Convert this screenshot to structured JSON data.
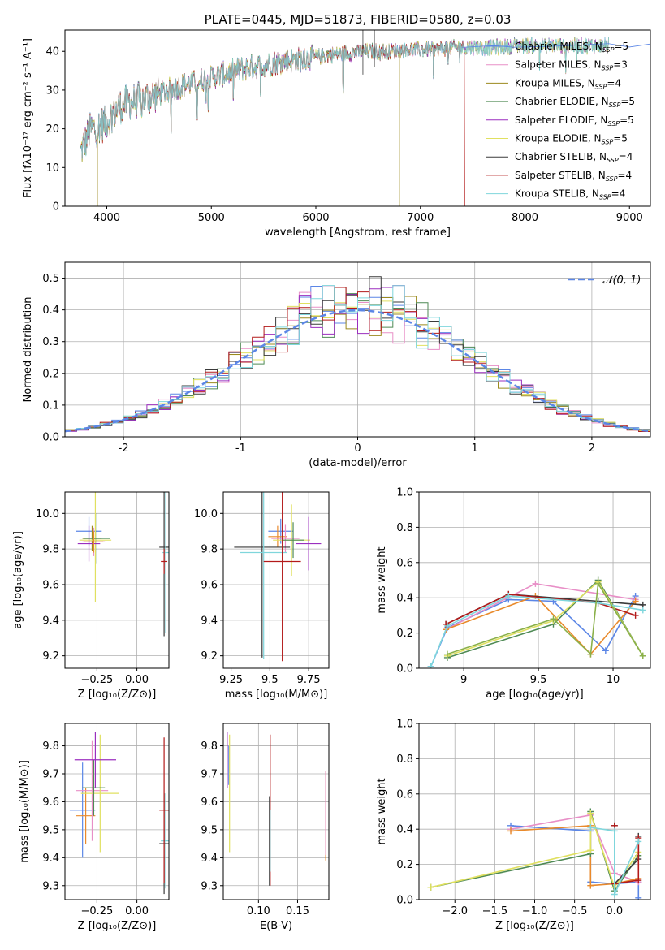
{
  "chart_data": [
    {
      "id": "spectrum",
      "type": "line",
      "title": "PLATE=0445, MJD=51873, FIBERID=0580, z=0.03",
      "xlabel": "wavelength [Angstrom, rest frame]",
      "ylabel": "Flux [fλ10⁻¹⁷ erg cm⁻² s⁻¹ A⁻¹]",
      "xlim": [
        3600,
        9200
      ],
      "ylim": [
        0,
        45.5
      ],
      "xticks": [
        4000,
        5000,
        6000,
        7000,
        8000,
        9000
      ],
      "yticks": [
        0,
        10,
        20,
        30,
        40
      ],
      "legend_loc": "upper right",
      "series": [
        {
          "name": "Chabrier MILES, N",
          "sub": "SSP",
          "tail": "=5",
          "color": "#5b86e6"
        },
        {
          "name": "Salpeter MILES, N",
          "sub": "SSP",
          "tail": "=3",
          "color": "#e88fc7"
        },
        {
          "name": "Kroupa MILES, N",
          "sub": "SSP",
          "tail": "=4",
          "color": "#9b8a1e"
        },
        {
          "name": "Chabrier ELODIE, N",
          "sub": "SSP",
          "tail": "=5",
          "color": "#4f8a55"
        },
        {
          "name": "Salpeter ELODIE, N",
          "sub": "SSP",
          "tail": "=5",
          "color": "#9b2fbf"
        },
        {
          "name": "Kroupa ELODIE, N",
          "sub": "SSP",
          "tail": "=5",
          "color": "#e0e060"
        },
        {
          "name": "Chabrier STELIB, N",
          "sub": "SSP",
          "tail": "=4",
          "color": "#3a3a3a"
        },
        {
          "name": "Salpeter STELIB, N",
          "sub": "SSP",
          "tail": "=4",
          "color": "#b31a1a"
        },
        {
          "name": "Kroupa STELIB, N",
          "sub": "SSP",
          "tail": "=4",
          "color": "#7fd6dc"
        }
      ],
      "continuum": [
        [
          3750,
          14
        ],
        [
          3800,
          17
        ],
        [
          3850,
          20
        ],
        [
          3900,
          20
        ],
        [
          4000,
          22
        ],
        [
          4100,
          25
        ],
        [
          4200,
          27
        ],
        [
          4300,
          27.5
        ],
        [
          4500,
          29
        ],
        [
          4700,
          31
        ],
        [
          4900,
          32.5
        ],
        [
          5100,
          34
        ],
        [
          5300,
          35.5
        ],
        [
          5500,
          36.5
        ],
        [
          5700,
          37.5
        ],
        [
          5900,
          38
        ],
        [
          6100,
          39
        ],
        [
          6300,
          39.5
        ],
        [
          6500,
          40
        ],
        [
          6700,
          40
        ],
        [
          6900,
          40.5
        ],
        [
          7100,
          40.5
        ],
        [
          7300,
          41
        ],
        [
          7500,
          41
        ],
        [
          7700,
          41
        ],
        [
          7900,
          41.5
        ],
        [
          8100,
          41.5
        ],
        [
          8300,
          41.5
        ],
        [
          8500,
          41.5
        ],
        [
          8700,
          41.5
        ],
        [
          8800,
          41.5
        ]
      ],
      "extra_tail": [
        [
          7400,
          41
        ],
        [
          7700,
          41
        ],
        [
          7900,
          40.5
        ],
        [
          8200,
          40.8
        ],
        [
          8500,
          41.3
        ],
        [
          8800,
          41.5
        ],
        [
          9000,
          41.5
        ],
        [
          9200,
          41.5
        ]
      ]
    },
    {
      "id": "residuals",
      "type": "area",
      "xlabel": "(data-model)/error",
      "ylabel": "Normed distribution",
      "xlim": [
        -2.5,
        2.5
      ],
      "ylim": [
        0,
        0.55
      ],
      "xticks": [
        -2,
        -1,
        0,
        1,
        2
      ],
      "yticks": [
        0.0,
        0.1,
        0.2,
        0.3,
        0.4,
        0.5
      ],
      "legend_label": "𝒩(0, 1)",
      "gaussian_color": "#5b86e6",
      "bin_width": 0.1
    },
    {
      "id": "age-vs-Z",
      "type": "scatter",
      "xlabel": "Z [log₁₀(Z/Z⊙)]",
      "ylabel": "age  [log₁₀(age/yr)]",
      "xlim": [
        -0.45,
        0.2
      ],
      "ylim": [
        9.13,
        10.12
      ],
      "xticks": [
        -0.25,
        0.0
      ],
      "xticklabels": [
        "−0.25",
        "0.00"
      ],
      "yticks": [
        9.2,
        9.4,
        9.6,
        9.8,
        10.0
      ],
      "points": [
        {
          "x": -0.3,
          "y": 9.9,
          "xerr": 0.08,
          "yerr": 0.08,
          "color": "#5b86e6"
        },
        {
          "x": -0.28,
          "y": 9.86,
          "xerr": 0.06,
          "yerr": 0.07,
          "color": "#9b8a1e"
        },
        {
          "x": -0.26,
          "y": 9.85,
          "xerr": 0.1,
          "yerr": 0.35,
          "color": "#e0e060"
        },
        {
          "x": -0.27,
          "y": 9.84,
          "xerr": 0.07,
          "yerr": 0.08,
          "color": "#e88fc7"
        },
        {
          "x": -0.25,
          "y": 9.86,
          "xerr": 0.08,
          "yerr": 0.14,
          "color": "#4f8a55"
        },
        {
          "x": -0.3,
          "y": 9.83,
          "xerr": 0.07,
          "yerr": 0.1,
          "color": "#9b2fbf"
        },
        {
          "x": 0.17,
          "y": 9.81,
          "xerr": 0.03,
          "yerr": 0.5,
          "color": "#3a3a3a"
        },
        {
          "x": 0.18,
          "y": 9.78,
          "xerr": 0.02,
          "yerr": 0.45,
          "color": "#7fd6dc"
        },
        {
          "x": 0.17,
          "y": 9.73,
          "xerr": 0.02,
          "yerr": 0.07,
          "color": "#b31a1a"
        },
        {
          "x": -0.27,
          "y": 9.84,
          "xerr": 0.06,
          "yerr": 0.06,
          "color": "#e98a2b"
        }
      ]
    },
    {
      "id": "age-vs-mass",
      "type": "scatter",
      "xlabel": "mass [log₁₀(M/M⊙)]",
      "ylabel": "",
      "xlim": [
        9.2,
        9.88
      ],
      "ylim": [
        9.13,
        10.12
      ],
      "xticks": [
        9.25,
        9.5,
        9.75
      ],
      "yticks": [
        9.2,
        9.4,
        9.6,
        9.8,
        10.0
      ],
      "points": [
        {
          "x": 9.57,
          "y": 9.9,
          "xerr": 0.08,
          "yerr": 0.07,
          "color": "#5b86e6"
        },
        {
          "x": 9.55,
          "y": 9.87,
          "xerr": 0.06,
          "yerr": 0.06,
          "color": "#e98a2b"
        },
        {
          "x": 9.64,
          "y": 9.85,
          "xerr": 0.12,
          "yerr": 0.2,
          "color": "#e0e060"
        },
        {
          "x": 9.6,
          "y": 9.86,
          "xerr": 0.09,
          "yerr": 0.08,
          "color": "#e88fc7"
        },
        {
          "x": 9.65,
          "y": 9.85,
          "xerr": 0.07,
          "yerr": 0.1,
          "color": "#4f8a55"
        },
        {
          "x": 9.75,
          "y": 9.83,
          "xerr": 0.08,
          "yerr": 0.15,
          "color": "#9b2fbf"
        },
        {
          "x": 9.45,
          "y": 9.81,
          "xerr": 0.18,
          "yerr": 0.62,
          "color": "#3a3a3a"
        },
        {
          "x": 9.46,
          "y": 9.78,
          "xerr": 0.15,
          "yerr": 0.6,
          "color": "#7fd6dc"
        },
        {
          "x": 9.58,
          "y": 9.73,
          "xerr": 0.12,
          "yerr": 0.56,
          "color": "#b31a1a"
        }
      ]
    },
    {
      "id": "weight-vs-age",
      "type": "line",
      "xlabel": "age  [log₁₀(age/yr)]",
      "ylabel": "mass weight",
      "xlim": [
        8.7,
        10.25
      ],
      "ylim": [
        0,
        1.0
      ],
      "xticks": [
        9.0,
        9.5,
        10.0
      ],
      "yticks": [
        0.0,
        0.2,
        0.4,
        0.6,
        0.8,
        1.0
      ],
      "lines": [
        {
          "color": "#5b86e6",
          "x": [
            8.78,
            8.89,
            9.3,
            9.6,
            9.95,
            10.15
          ],
          "y": [
            0.01,
            0.23,
            0.39,
            0.38,
            0.1,
            0.41
          ]
        },
        {
          "color": "#e88fc7",
          "x": [
            8.88,
            9.48,
            10.15
          ],
          "y": [
            0.22,
            0.48,
            0.39
          ]
        },
        {
          "color": "#e98a2b",
          "x": [
            8.88,
            9.48,
            9.85,
            10.15
          ],
          "y": [
            0.22,
            0.41,
            0.08,
            0.38
          ]
        },
        {
          "color": "#3a3a3a",
          "x": [
            8.88,
            9.3,
            9.9,
            10.2
          ],
          "y": [
            0.25,
            0.42,
            0.38,
            0.36
          ]
        },
        {
          "color": "#b31a1a",
          "x": [
            8.88,
            9.3,
            9.9,
            10.15
          ],
          "y": [
            0.25,
            0.42,
            0.37,
            0.3
          ]
        },
        {
          "color": "#4f8a55",
          "x": [
            8.89,
            9.6,
            9.9,
            10.2
          ],
          "y": [
            0.06,
            0.25,
            0.5,
            0.07
          ]
        },
        {
          "color": "#e0e060",
          "x": [
            8.89,
            9.6,
            9.9,
            10.2
          ],
          "y": [
            0.07,
            0.27,
            0.49,
            0.07
          ]
        },
        {
          "color": "#7fd6dc",
          "x": [
            8.78,
            8.89,
            9.3,
            9.9,
            10.2
          ],
          "y": [
            0.01,
            0.24,
            0.41,
            0.37,
            0.33
          ]
        },
        {
          "color": "#8ab04a",
          "x": [
            8.89,
            9.6,
            9.85,
            9.9,
            10.2
          ],
          "y": [
            0.08,
            0.28,
            0.08,
            0.48,
            0.07
          ]
        }
      ]
    },
    {
      "id": "mass-vs-Z",
      "type": "scatter",
      "xlabel": "Z [log₁₀(Z/Z⊙)]",
      "ylabel": "mass [log₁₀(M/M⊙)]",
      "xlim": [
        -0.45,
        0.2
      ],
      "ylim": [
        9.25,
        9.88
      ],
      "xticks": [
        -0.25,
        0.0
      ],
      "xticklabels": [
        "−0.25",
        "0.00"
      ],
      "yticks": [
        9.3,
        9.4,
        9.5,
        9.6,
        9.7,
        9.8
      ],
      "points": [
        {
          "x": -0.34,
          "y": 9.57,
          "xerr": 0.08,
          "yerr": 0.17,
          "color": "#5b86e6"
        },
        {
          "x": -0.32,
          "y": 9.55,
          "xerr": 0.06,
          "yerr": 0.1,
          "color": "#e98a2b"
        },
        {
          "x": -0.28,
          "y": 9.64,
          "xerr": 0.1,
          "yerr": 0.18,
          "color": "#e88fc7"
        },
        {
          "x": -0.23,
          "y": 9.63,
          "xerr": 0.12,
          "yerr": 0.21,
          "color": "#e0e060"
        },
        {
          "x": -0.27,
          "y": 9.65,
          "xerr": 0.07,
          "yerr": 0.1,
          "color": "#4f8a55"
        },
        {
          "x": -0.26,
          "y": 9.75,
          "xerr": 0.13,
          "yerr": 0.1,
          "color": "#9b2fbf"
        },
        {
          "x": 0.18,
          "y": 9.46,
          "xerr": 0.03,
          "yerr": 0.17,
          "color": "#7fd6dc"
        },
        {
          "x": 0.17,
          "y": 9.45,
          "xerr": 0.03,
          "yerr": 0.18,
          "color": "#3a3a3a"
        },
        {
          "x": 0.17,
          "y": 9.57,
          "xerr": 0.03,
          "yerr": 0.26,
          "color": "#b31a1a"
        }
      ]
    },
    {
      "id": "mass-vs-EBV",
      "type": "scatter",
      "xlabel": "E(B-V)",
      "ylabel": "",
      "xlim": [
        0.055,
        0.19
      ],
      "ylim": [
        9.25,
        9.88
      ],
      "xticks": [
        0.1,
        0.15
      ],
      "xticklabels": [
        "0.10",
        "0.15"
      ],
      "yticks": [
        9.3,
        9.4,
        9.5,
        9.6,
        9.7,
        9.8
      ],
      "points": [
        {
          "x": 0.062,
          "y": 9.73,
          "xerr": 0,
          "yerr": 0.07,
          "color": "#5b86e6"
        },
        {
          "x": 0.06,
          "y": 9.75,
          "xerr": 0,
          "yerr": 0.1,
          "color": "#9b2fbf"
        },
        {
          "x": 0.063,
          "y": 9.63,
          "xerr": 0,
          "yerr": 0.21,
          "color": "#e0e060"
        },
        {
          "x": 0.115,
          "y": 9.57,
          "xerr": 0,
          "yerr": 0.27,
          "color": "#b31a1a"
        },
        {
          "x": 0.114,
          "y": 9.46,
          "xerr": 0,
          "yerr": 0.16,
          "color": "#3a3a3a"
        },
        {
          "x": 0.115,
          "y": 9.46,
          "xerr": 0,
          "yerr": 0.11,
          "color": "#7fd6dc"
        },
        {
          "x": 0.186,
          "y": 9.55,
          "xerr": 0,
          "yerr": 0.16,
          "color": "#e98a2b"
        },
        {
          "x": 0.186,
          "y": 9.56,
          "xerr": 0,
          "yerr": 0.15,
          "color": "#e88fc7"
        }
      ]
    },
    {
      "id": "weight-vs-Z",
      "type": "line",
      "xlabel": "Z [log₁₀(Z/Z⊙)]",
      "ylabel": "mass weight",
      "xlim": [
        -2.45,
        0.45
      ],
      "ylim": [
        0,
        1.0
      ],
      "xticks": [
        -2.0,
        -1.5,
        -1.0,
        -0.5,
        0.0
      ],
      "xticklabels": [
        "−2.0",
        "−1.5",
        "−1.0",
        "−0.5",
        "0.0"
      ],
      "yticks": [
        0.0,
        0.2,
        0.4,
        0.6,
        0.8,
        1.0
      ],
      "lines": [
        {
          "color": "#5b86e6",
          "x": [
            -1.3,
            -0.3,
            -0.3,
            0.0,
            0.3,
            0.3
          ],
          "y": [
            0.42,
            0.39,
            0.1,
            0.09,
            0.1,
            0.01
          ]
        },
        {
          "color": "#e88fc7",
          "x": [
            -1.3,
            -0.3,
            0.0,
            0.3
          ],
          "y": [
            0.4,
            0.48,
            0.15,
            0.1
          ]
        },
        {
          "color": "#e98a2b",
          "x": [
            -1.3,
            -0.3,
            -0.3,
            0.0,
            0.3
          ],
          "y": [
            0.39,
            0.42,
            0.08,
            0.09,
            0.12
          ]
        },
        {
          "color": "#4f8a55",
          "x": [
            -2.3,
            -0.3,
            -0.3,
            0.0,
            0.3
          ],
          "y": [
            0.07,
            0.26,
            0.5,
            0.05,
            0.25
          ]
        },
        {
          "color": "#e0e060",
          "x": [
            -2.3,
            -0.3,
            -0.3,
            0.0,
            0.3
          ],
          "y": [
            0.07,
            0.28,
            0.49,
            0.07,
            0.27
          ]
        },
        {
          "color": "#3a3a3a",
          "x": [
            0.0,
            0.0,
            0.3,
            0.3
          ],
          "y": [
            0.42,
            0.09,
            0.23,
            0.36
          ]
        },
        {
          "color": "#b31a1a",
          "x": [
            0.0,
            0.0,
            0.3,
            0.3
          ],
          "y": [
            0.42,
            0.09,
            0.11,
            0.35
          ]
        },
        {
          "color": "#7fd6dc",
          "x": [
            -0.3,
            0.0,
            0.0,
            0.3
          ],
          "y": [
            0.41,
            0.39,
            0.03,
            0.33
          ]
        }
      ]
    }
  ]
}
